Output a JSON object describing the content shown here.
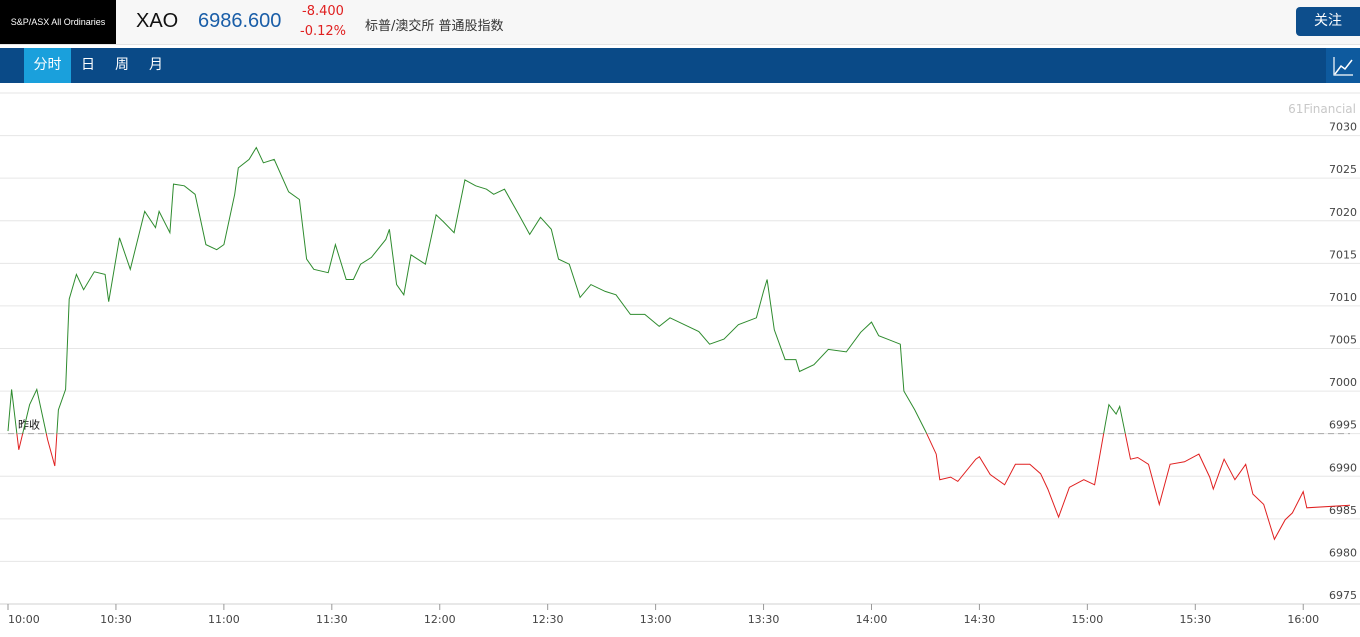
{
  "header": {
    "index_name": "S&P/ASX All Ordinaries",
    "symbol": "XAO",
    "price": "6986.600",
    "change": "-8.400",
    "change_pct": "-0.12%",
    "description": "标普/澳交所 普通股指数",
    "follow_button": "关注"
  },
  "tabs": [
    "分时",
    "日",
    "周",
    "月"
  ],
  "chart_data": {
    "type": "line",
    "watermark": "61Financial",
    "x": [
      0,
      1,
      3,
      6,
      8,
      11,
      13,
      14,
      16,
      17,
      19,
      21,
      24,
      27,
      28,
      31,
      34,
      38,
      41,
      42,
      45,
      46,
      49,
      52,
      55,
      58,
      60,
      63,
      64,
      67,
      69,
      71,
      74,
      78,
      81,
      83,
      85,
      89,
      91,
      94,
      96,
      98,
      101,
      105,
      106,
      108,
      110,
      112,
      116,
      119,
      121,
      124,
      127,
      130,
      133,
      135,
      138,
      142,
      145,
      148,
      151,
      153,
      156,
      159,
      162,
      166,
      169,
      173,
      177,
      181,
      184,
      188,
      192,
      195,
      199,
      203,
      208,
      210,
      211,
      213,
      216,
      219,
      220,
      224,
      228,
      233,
      237,
      240,
      242,
      248,
      249,
      252,
      255,
      258,
      259,
      262,
      264,
      269,
      270,
      273,
      277,
      280,
      284,
      287,
      289,
      292,
      295,
      299,
      302,
      305,
      306,
      308,
      309,
      312,
      314,
      317,
      320,
      323,
      327,
      331,
      334,
      335,
      338,
      341,
      344,
      346,
      349,
      352,
      355,
      357,
      360,
      361,
      373
    ],
    "series": [
      {
        "color": "#2e8b2e",
        "values": [
          6995.3,
          7000.2,
          6993.1,
          6998.4,
          7000.2,
          6994.3,
          6991.2,
          6997.8,
          7000.2,
          7010.8,
          7013.7,
          7011.9,
          7014.0,
          7013.7,
          7010.5,
          7018.0,
          7014.3,
          7021.1,
          7019.2,
          7021.1,
          7018.6,
          7024.3,
          7024.1,
          7023.1,
          7017.2,
          7016.6,
          7017.2,
          7023.1,
          7026.2,
          7027.2,
          7028.6,
          7026.8,
          7027.2,
          7023.4,
          7022.5,
          7015.5,
          7014.3,
          7013.9,
          7017.2,
          7013.1,
          7013.1,
          7014.9,
          7015.7,
          7017.8,
          7019.0,
          7012.5,
          7011.3,
          7016.0,
          7014.9,
          7020.7,
          7019.9,
          7018.6,
          7024.8,
          7024.1,
          7023.7,
          7023.1,
          7023.7,
          7020.7,
          7018.4,
          7020.4,
          7019.0,
          7015.5,
          7014.9,
          7011.0,
          7012.5,
          7011.7,
          7011.3,
          7009.0,
          7009.0,
          7007.6,
          7008.6,
          7007.8,
          7007.0,
          7005.5,
          7006.1,
          7007.8,
          7008.6,
          7011.7,
          7013.1,
          7007.2,
          7003.7,
          7003.7,
          7002.3,
          7003.1,
          7004.9,
          7004.6,
          7006.9,
          7008.1,
          7006.5,
          7005.5,
          7000.0,
          6997.8,
          6995.3,
          6992.6,
          6989.6,
          6989.9,
          6989.4,
          6992.0,
          6992.3,
          6990.2,
          6989.0,
          6991.4,
          6991.4,
          6990.3,
          6988.5,
          6985.2,
          6988.7,
          6989.6,
          6989.0,
          6996.1,
          6998.4,
          6997.3,
          6998.2,
          6992.0,
          6992.2,
          6991.4,
          6986.7,
          6991.4,
          6991.7,
          6992.6,
          6989.9,
          6988.5,
          6992.0,
          6989.6,
          6991.4,
          6987.9,
          6986.7,
          6982.6,
          6984.9,
          6985.7,
          6988.2,
          6986.3,
          6986.6
        ]
      }
    ],
    "down_color": "#e02020",
    "reference": {
      "label": "昨收",
      "value": 6995.0
    },
    "xlim": [
      0,
      373
    ],
    "xticks": [
      {
        "value": 0,
        "label": "10:00"
      },
      {
        "value": 30,
        "label": "10:30"
      },
      {
        "value": 60,
        "label": "11:00"
      },
      {
        "value": 90,
        "label": "11:30"
      },
      {
        "value": 120,
        "label": "12:00"
      },
      {
        "value": 150,
        "label": "12:30"
      },
      {
        "value": 180,
        "label": "13:00"
      },
      {
        "value": 210,
        "label": "13:30"
      },
      {
        "value": 240,
        "label": "14:00"
      },
      {
        "value": 270,
        "label": "14:30"
      },
      {
        "value": 300,
        "label": "15:00"
      },
      {
        "value": 330,
        "label": "15:30"
      },
      {
        "value": 360,
        "label": "16:00"
      }
    ],
    "ylim": [
      6975,
      7035
    ],
    "yticks": [
      6975,
      6980,
      6985,
      6990,
      6995,
      7000,
      7005,
      7010,
      7015,
      7020,
      7025,
      7030
    ],
    "grid": true
  }
}
